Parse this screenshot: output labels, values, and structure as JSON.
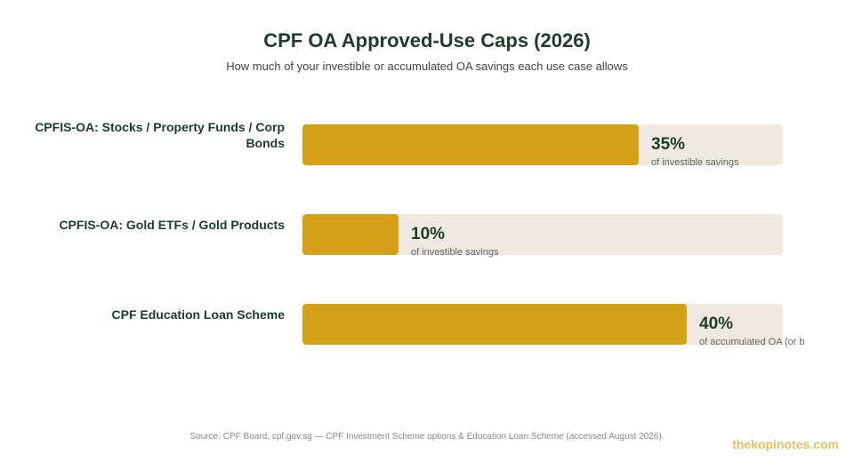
{
  "chart_data": {
    "type": "bar",
    "orientation": "horizontal",
    "title": "CPF OA Approved-Use Caps (2026)",
    "subtitle": "How much of your investible or accumulated OA savings each use case allows",
    "categories": [
      "CPFIS-OA: Stocks / Property Funds / Corp Bonds",
      "CPFIS-OA: Gold ETFs / Gold Products",
      "CPF Education Loan Scheme"
    ],
    "values": [
      35,
      10,
      40
    ],
    "value_labels": [
      "35%",
      "10%",
      "40%"
    ],
    "value_units": [
      "of investible savings",
      "of investible savings",
      "of accumulated OA (or b"
    ],
    "xlim": [
      0,
      50
    ],
    "grid": false,
    "colors": {
      "bar": "#d4a218",
      "track": "#efeadf",
      "text": "#1e3b2c"
    }
  },
  "footer": {
    "source": "Source: CPF Board, cpf.gov.sg — CPF Investment Scheme options & Education Loan Scheme (accessed August 2026).",
    "brand": "thekopinotes.com"
  }
}
